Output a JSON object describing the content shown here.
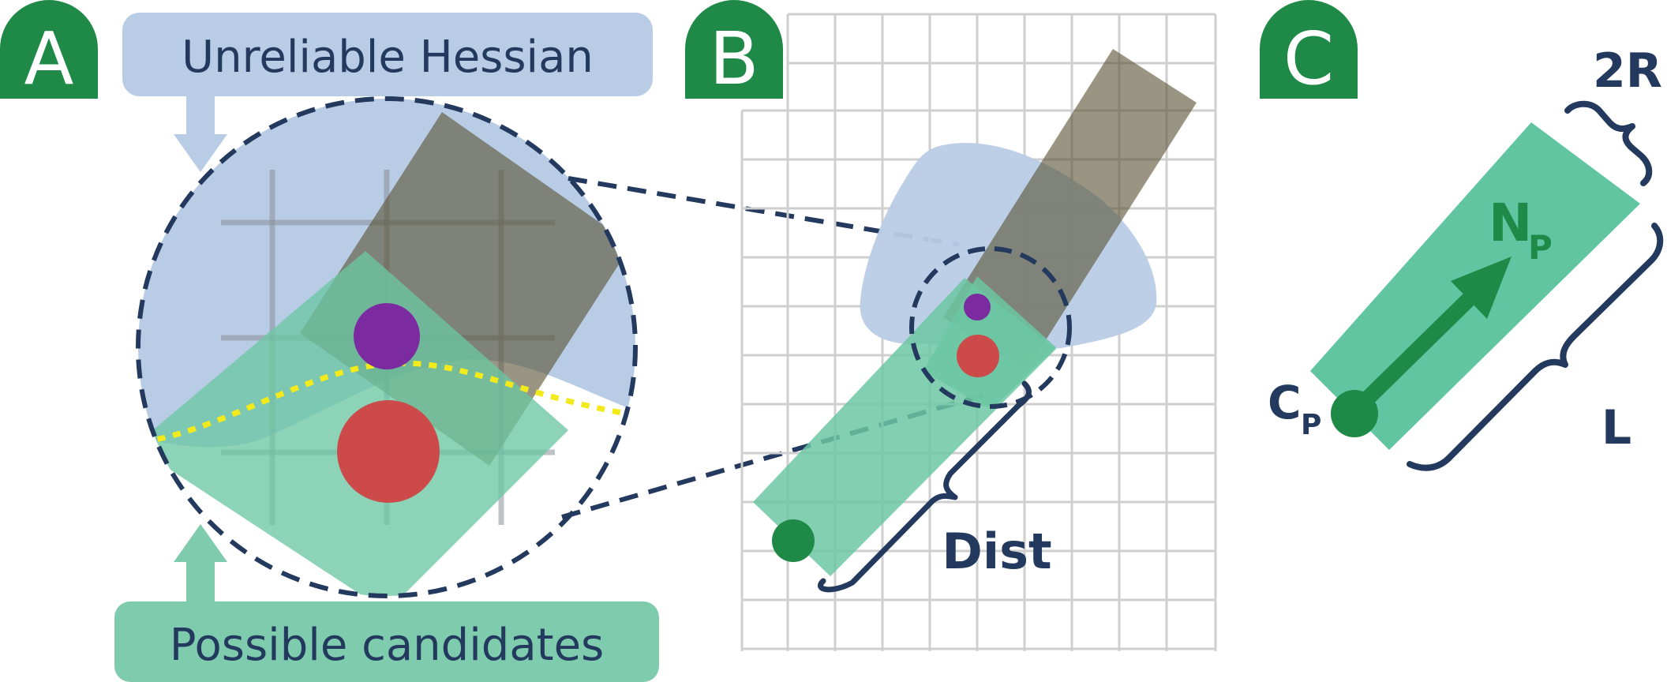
{
  "panels": [
    {
      "letter": "A",
      "badge_color": "#1f8a48"
    },
    {
      "letter": "B",
      "badge_color": "#1f8a48"
    },
    {
      "letter": "C",
      "badge_color": "#1f8a48"
    }
  ],
  "panel_a": {
    "top_callout": "Unreliable Hessian",
    "bottom_callout": "Possible candidates"
  },
  "panel_b": {
    "dist_label": "Dist"
  },
  "panel_c": {
    "width_label": "2R",
    "length_label": "L",
    "center_label": "C",
    "center_sub": "P",
    "normal_label": "N",
    "normal_sub": "P"
  },
  "colors": {
    "blue_region": "#b9cce6",
    "green_candidates": "#6cc7a3",
    "dark_bar": "#5a5436",
    "purple_point": "#7b2aa0",
    "red_point": "#cc4a4a",
    "green_point": "#1f8a48",
    "navy": "#23395d",
    "yellow_boundary": "#f2ea1a",
    "grid": "#cfcfcf"
  },
  "icons": {
    "callout_arrow": "down-arrow-icon",
    "callout_arrow_up": "up-arrow-icon",
    "normal_arrow": "arrow-icon",
    "brace": "curly-brace-icon"
  }
}
